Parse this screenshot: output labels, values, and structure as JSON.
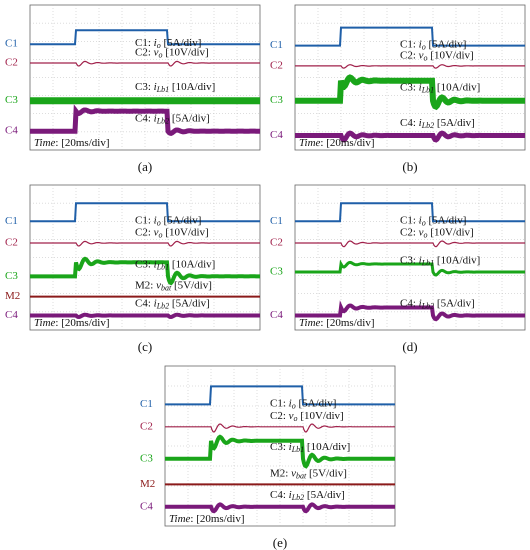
{
  "panels": [
    {
      "label": "(a)",
      "channels": [
        {
          "name": "C1",
          "annotation": {
            "prefix": "C1: ",
            "symbol": "i",
            "sub": "o",
            "scale": " [5A/div]"
          }
        },
        {
          "name": "C2",
          "annotation": {
            "prefix": "C2: ",
            "symbol": "v",
            "sub": "o",
            "scale": " [10V/div]"
          }
        },
        {
          "name": "C3",
          "annotation": {
            "prefix": "C3: ",
            "symbol": "i",
            "sub": "Lb1",
            "scale": " [10A/div]"
          }
        },
        {
          "name": "C4",
          "annotation": {
            "prefix": "C4: ",
            "symbol": "i",
            "sub": "Lb2",
            "scale": " [5A/div]"
          }
        }
      ],
      "time_word": "Time",
      "time_rest": ": [20ms/div]"
    },
    {
      "label": "(b)",
      "channels": [
        {
          "name": "C1",
          "annotation": {
            "prefix": "C1: ",
            "symbol": "i",
            "sub": "o",
            "scale": " [5A/div]"
          }
        },
        {
          "name": "C2",
          "annotation": {
            "prefix": "C2: ",
            "symbol": "v",
            "sub": "o",
            "scale": " [10V/div]"
          }
        },
        {
          "name": "C3",
          "annotation": {
            "prefix": "C3: ",
            "symbol": "i",
            "sub": "Lb1",
            "scale": " [10A/div]"
          }
        },
        {
          "name": "C4",
          "annotation": {
            "prefix": "C4: ",
            "symbol": "i",
            "sub": "Lb2",
            "scale": " [5A/div]"
          }
        }
      ],
      "time_word": "Time",
      "time_rest": ": [20ms/div]"
    },
    {
      "label": "(c)",
      "channels": [
        {
          "name": "C1",
          "annotation": {
            "prefix": "C1: ",
            "symbol": "i",
            "sub": "o",
            "scale": " [5A/div]"
          }
        },
        {
          "name": "C2",
          "annotation": {
            "prefix": "C2: ",
            "symbol": "v",
            "sub": "o",
            "scale": " [10V/div]"
          }
        },
        {
          "name": "C3",
          "annotation": {
            "prefix": "C3: ",
            "symbol": "i",
            "sub": "Lb1",
            "scale": " [10A/div]"
          }
        },
        {
          "name": "M2",
          "annotation": {
            "prefix": "M2: ",
            "symbol": "v",
            "sub": "bat",
            "scale": " [5V/div]"
          }
        },
        {
          "name": "C4",
          "annotation": {
            "prefix": "C4: ",
            "symbol": "i",
            "sub": "Lb2",
            "scale": " [5A/div]"
          }
        }
      ],
      "time_word": "Time",
      "time_rest": ": [20ms/div]"
    },
    {
      "label": "(d)",
      "channels": [
        {
          "name": "C1",
          "annotation": {
            "prefix": "C1: ",
            "symbol": "i",
            "sub": "o",
            "scale": " [5A/div]"
          }
        },
        {
          "name": "C2",
          "annotation": {
            "prefix": "C2: ",
            "symbol": "v",
            "sub": "o",
            "scale": " [10V/div]"
          }
        },
        {
          "name": "C3",
          "annotation": {
            "prefix": "C3: ",
            "symbol": "i",
            "sub": "Lb1",
            "scale": " [10A/div]"
          }
        },
        {
          "name": "C4",
          "annotation": {
            "prefix": "C4: ",
            "symbol": "i",
            "sub": "Lb2",
            "scale": " [5A/div]"
          }
        }
      ],
      "time_word": "Time",
      "time_rest": ": [20ms/div]"
    },
    {
      "label": "(e)",
      "channels": [
        {
          "name": "C1",
          "annotation": {
            "prefix": "C1: ",
            "symbol": "i",
            "sub": "o",
            "scale": " [5A/div]"
          }
        },
        {
          "name": "C2",
          "annotation": {
            "prefix": "C2: ",
            "symbol": "v",
            "sub": "o",
            "scale": " [10V/div]"
          }
        },
        {
          "name": "C3",
          "annotation": {
            "prefix": "C3: ",
            "symbol": "i",
            "sub": "Lb1",
            "scale": " [10A/div]"
          }
        },
        {
          "name": "M2",
          "annotation": {
            "prefix": "M2: ",
            "symbol": "v",
            "sub": "bat",
            "scale": " [5V/div]"
          }
        },
        {
          "name": "C4",
          "annotation": {
            "prefix": "C4: ",
            "symbol": "i",
            "sub": "Lb2",
            "scale": " [5A/div]"
          }
        }
      ],
      "time_word": "Time",
      "time_rest": ": [20ms/div]"
    }
  ]
}
